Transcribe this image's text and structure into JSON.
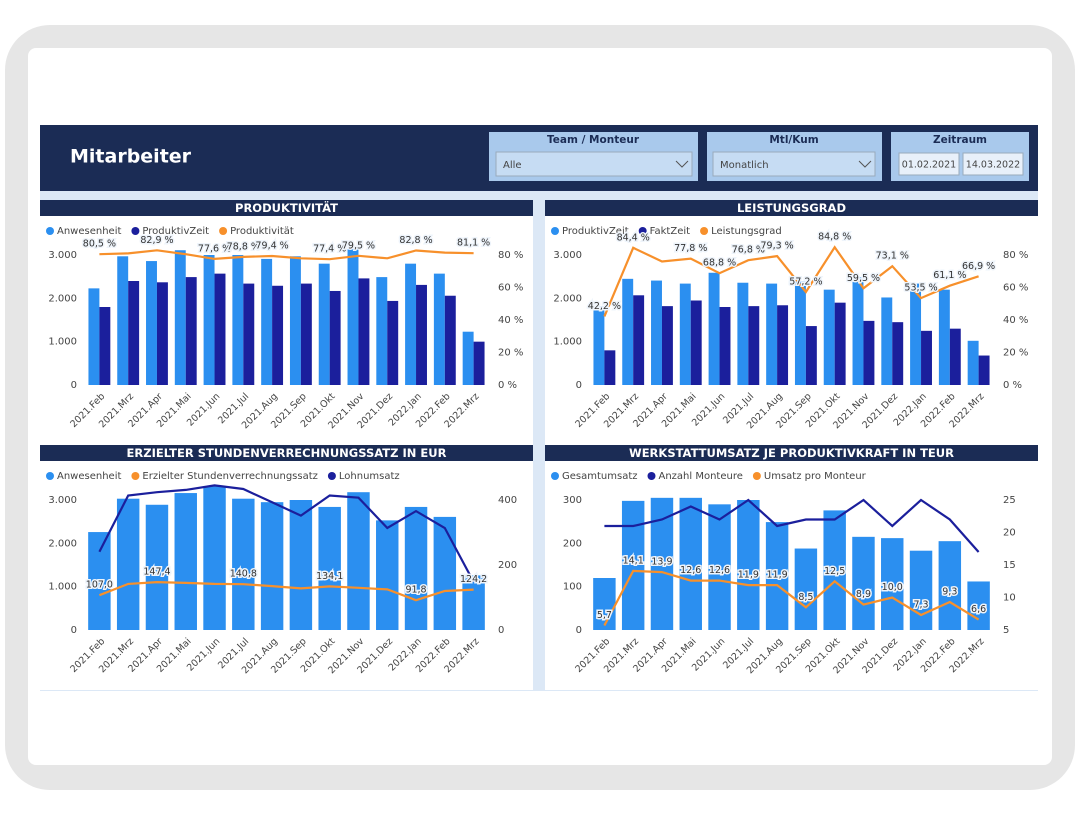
{
  "header": {
    "title": "Mitarbeiter",
    "filters": [
      {
        "label": "Team / Monteur",
        "value": "Alle"
      },
      {
        "label": "Mtl/Kum",
        "value": "Monatlich"
      },
      {
        "label": "Zeitraum",
        "from": "01.02.2021",
        "to": "14.03.2022"
      }
    ]
  },
  "chart_data": [
    {
      "type": "combo",
      "title": "PRODUKTIVITÄT",
      "categories": [
        "2021.Feb",
        "2021.Mrz",
        "2021.Apr",
        "2021.Mai",
        "2021.Jun",
        "2021.Jul",
        "2021.Aug",
        "2021.Sep",
        "2021.Okt",
        "2021.Nov",
        "2021.Dez",
        "2022.Jan",
        "2022.Feb",
        "2022.Mrz"
      ],
      "ylim": [
        0,
        3000
      ],
      "yticks": [
        0,
        {
          "value": 1000,
          "label": "1.000"
        },
        {
          "value": 2000,
          "label": "2.000"
        },
        {
          "value": 3000,
          "label": "3.000"
        }
      ],
      "y2lim": [
        0,
        80
      ],
      "y2ticks": [
        {
          "value": 0,
          "label": "0 %"
        },
        {
          "value": 20,
          "label": "20 %"
        },
        {
          "value": 40,
          "label": "40 %"
        },
        {
          "value": 60,
          "label": "60 %"
        },
        {
          "value": 80,
          "label": "80 %"
        }
      ],
      "series": [
        {
          "name": "Anwesenheit",
          "type": "bar",
          "color": "#2b8ff0",
          "values": [
            2230,
            2970,
            2860,
            3110,
            3000,
            3000,
            2910,
            2970,
            2800,
            3140,
            2490,
            2800,
            2570,
            1230
          ]
        },
        {
          "name": "ProduktivZeit",
          "type": "bar",
          "color": "#1b1f9c",
          "values": [
            1800,
            2400,
            2370,
            2490,
            2570,
            2340,
            2290,
            2340,
            2170,
            2460,
            1940,
            2310,
            2060,
            1000
          ]
        },
        {
          "name": "Produktivität",
          "type": "line",
          "axis": "y2",
          "color": "#f7902b",
          "values": [
            80.5,
            81.0,
            82.9,
            80.5,
            77.6,
            78.8,
            79.4,
            78.0,
            77.4,
            79.5,
            78.0,
            82.8,
            81.5,
            81.1
          ],
          "value_labels": [
            "80,5 %",
            null,
            "82,9 %",
            null,
            "77,6 %",
            "78,8 %",
            "79,4 %",
            null,
            "77,4 %",
            "79,5 %",
            null,
            "82,8 %",
            null,
            "81,1 %"
          ]
        }
      ]
    },
    {
      "type": "combo",
      "title": "LEISTUNGSGRAD",
      "categories": [
        "2021.Feb",
        "2021.Mrz",
        "2021.Apr",
        "2021.Mai",
        "2021.Jun",
        "2021.Jul",
        "2021.Aug",
        "2021.Sep",
        "2021.Okt",
        "2021.Nov",
        "2021.Dez",
        "2022.Jan",
        "2022.Feb",
        "2022.Mrz"
      ],
      "ylim": [
        0,
        3000
      ],
      "yticks": [
        0,
        {
          "value": 1000,
          "label": "1.000"
        },
        {
          "value": 2000,
          "label": "2.000"
        },
        {
          "value": 3000,
          "label": "3.000"
        }
      ],
      "y2lim": [
        0,
        80
      ],
      "y2ticks": [
        {
          "value": 0,
          "label": "0 %"
        },
        {
          "value": 20,
          "label": "20 %"
        },
        {
          "value": 40,
          "label": "40 %"
        },
        {
          "value": 60,
          "label": "60 %"
        },
        {
          "value": 80,
          "label": "80 %"
        }
      ],
      "series": [
        {
          "name": "ProduktivZeit",
          "type": "bar",
          "color": "#2b8ff0",
          "values": [
            1820,
            2450,
            2410,
            2340,
            2590,
            2360,
            2340,
            2390,
            2200,
            2480,
            2020,
            2340,
            2200,
            1020
          ]
        },
        {
          "name": "FaktZeit",
          "type": "bar",
          "color": "#1b1f9c",
          "values": [
            800,
            2070,
            1820,
            1950,
            1800,
            1820,
            1840,
            1360,
            1900,
            1480,
            1450,
            1250,
            1300,
            680
          ]
        },
        {
          "name": "Leistungsgrad",
          "type": "line",
          "axis": "y2",
          "color": "#f7902b",
          "values": [
            42.2,
            84.4,
            76.0,
            77.8,
            68.8,
            76.8,
            79.3,
            57.2,
            84.8,
            59.5,
            73.1,
            53.5,
            61.1,
            66.9
          ],
          "value_labels": [
            "42,2 %",
            "84,4 %",
            null,
            "77,8 %",
            "68,8 %",
            "76,8 %",
            "79,3 %",
            "57,2 %",
            "84,8 %",
            "59,5 %",
            "73,1 %",
            "53,5 %",
            "61,1 %",
            "66,9 %"
          ]
        }
      ]
    },
    {
      "type": "combo",
      "title": "ERZIELTER STUNDENVERRECHNUNGSSATZ IN EUR",
      "categories": [
        "2021.Feb",
        "2021.Mrz",
        "2021.Apr",
        "2021.Mai",
        "2021.Jun",
        "2021.Jul",
        "2021.Aug",
        "2021.Sep",
        "2021.Okt",
        "2021.Nov",
        "2021.Dez",
        "2022.Jan",
        "2022.Feb",
        "2022.Mrz"
      ],
      "ylim": [
        0,
        3000
      ],
      "yticks": [
        0,
        {
          "value": 1000,
          "label": "1.000"
        },
        {
          "value": 2000,
          "label": "2.000"
        },
        {
          "value": 3000,
          "label": "3.000"
        }
      ],
      "y2lim": [
        0,
        400
      ],
      "y2ticks": [
        0,
        200,
        400
      ],
      "series": [
        {
          "name": "Anwesenheit",
          "type": "bar",
          "color": "#2b8ff0",
          "values": [
            2260,
            3030,
            2890,
            3160,
            3320,
            3030,
            2950,
            3000,
            2840,
            3180,
            2530,
            2840,
            2610,
            1260
          ]
        },
        {
          "name": "Erzielter Stundenverrechnungssatz",
          "type": "line",
          "axis": "y2",
          "color": "#f7902b",
          "values": [
            107.0,
            142,
            147.4,
            145,
            142,
            140.8,
            135,
            128,
            134.1,
            130,
            125,
            91.8,
            120,
            124.2
          ],
          "value_labels": [
            "107,0",
            null,
            "147,4",
            null,
            null,
            "140,8",
            null,
            null,
            "134,1",
            null,
            null,
            "91,8",
            null,
            "124,2"
          ]
        },
        {
          "name": "Lohnumsatz",
          "type": "line",
          "axis": "y2",
          "color": "#1b1f9c",
          "values": [
            241,
            414,
            424,
            431,
            445,
            434,
            393,
            352,
            414,
            407,
            314,
            366,
            314,
            148
          ]
        }
      ]
    },
    {
      "type": "combo",
      "title": "WERKSTATTUMSATZ JE PRODUKTIVKRAFT IN TEUR",
      "categories": [
        "2021.Feb",
        "2021.Mrz",
        "2021.Apr",
        "2021.Mai",
        "2021.Jun",
        "2021.Jul",
        "2021.Aug",
        "2021.Sep",
        "2021.Okt",
        "2021.Nov",
        "2021.Dez",
        "2022.Jan",
        "2022.Feb",
        "2022.Mrz"
      ],
      "ylim": [
        0,
        300
      ],
      "yticks": [
        0,
        100,
        200,
        300
      ],
      "y2lim": [
        5,
        25
      ],
      "y2ticks": [
        5,
        10,
        15,
        20,
        25
      ],
      "series": [
        {
          "name": "Gesamtumsatz",
          "type": "bar",
          "color": "#2b8ff0",
          "values": [
            120,
            298,
            305,
            305,
            290,
            300,
            249,
            188,
            276,
            215,
            212,
            183,
            205,
            112
          ]
        },
        {
          "name": "Anzahl Monteure",
          "type": "line",
          "axis": "y2",
          "color": "#1b1f9c",
          "values": [
            21,
            21,
            22,
            24,
            22,
            25,
            21,
            22,
            22,
            25,
            21,
            25,
            22,
            17
          ]
        },
        {
          "name": "Umsatz pro Monteur",
          "type": "line",
          "axis": "y2",
          "color": "#f7902b",
          "values": [
            5.7,
            14.1,
            13.9,
            12.6,
            12.6,
            11.9,
            11.9,
            8.5,
            12.5,
            8.9,
            10.0,
            7.3,
            9.3,
            6.6
          ],
          "value_labels": [
            "5,7",
            "14,1",
            "13,9",
            "12,6",
            "12,6",
            "11,9",
            "11,9",
            "8,5",
            "12,5",
            "8,9",
            "10,0",
            "7,3",
            "9,3",
            "6,6"
          ]
        }
      ]
    }
  ]
}
